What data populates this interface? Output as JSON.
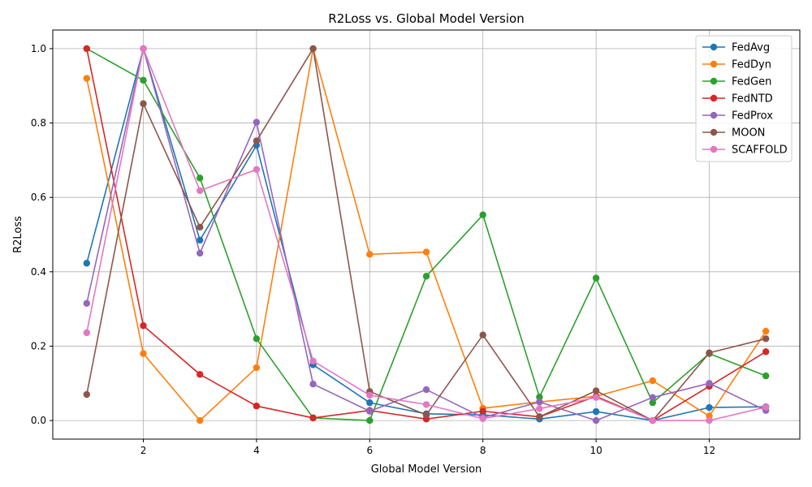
{
  "chart_data": {
    "type": "line",
    "title": "R2Loss vs. Global Model Version",
    "xlabel": "Global Model Version",
    "ylabel": "R2Loss",
    "xlim": [
      0.4,
      13.6
    ],
    "ylim": [
      -0.05,
      1.05
    ],
    "xticks": [
      2,
      4,
      6,
      8,
      10,
      12
    ],
    "yticks": [
      0.0,
      0.2,
      0.4,
      0.6,
      0.8,
      1.0
    ],
    "xtick_labels": [
      "2",
      "4",
      "6",
      "8",
      "10",
      "12"
    ],
    "ytick_labels": [
      "0.0",
      "0.2",
      "0.4",
      "0.6",
      "0.8",
      "1.0"
    ],
    "grid": true,
    "legend_position": "top-right",
    "x": [
      1,
      2,
      3,
      4,
      5,
      6,
      7,
      8,
      9,
      10,
      11,
      12,
      13
    ],
    "series": [
      {
        "name": "FedAvg",
        "color": "#1f77b4",
        "values": [
          0.423,
          1.0,
          0.485,
          0.74,
          0.15,
          0.048,
          0.018,
          0.015,
          0.004,
          0.024,
          0.0,
          0.035,
          0.037
        ]
      },
      {
        "name": "FedDyn",
        "color": "#ff7f0e",
        "values": [
          0.92,
          0.18,
          0.0,
          0.142,
          1.0,
          0.447,
          0.453,
          0.033,
          0.05,
          0.065,
          0.107,
          0.012,
          0.24
        ]
      },
      {
        "name": "FedGen",
        "color": "#2ca02c",
        "values": [
          1.0,
          0.915,
          0.652,
          0.22,
          0.007,
          0.0,
          0.388,
          0.553,
          0.063,
          0.383,
          0.048,
          0.18,
          0.12
        ]
      },
      {
        "name": "FedNTD",
        "color": "#d62728",
        "values": [
          1.0,
          0.255,
          0.124,
          0.039,
          0.007,
          0.027,
          0.004,
          0.025,
          0.01,
          0.065,
          0.0,
          0.092,
          0.185
        ]
      },
      {
        "name": "FedProx",
        "color": "#9467bd",
        "values": [
          0.315,
          1.0,
          0.45,
          0.802,
          0.098,
          0.025,
          0.083,
          0.008,
          0.05,
          0.0,
          0.062,
          0.1,
          0.027
        ]
      },
      {
        "name": "MOON",
        "color": "#8c564b",
        "values": [
          0.07,
          0.852,
          0.52,
          0.752,
          1.0,
          0.078,
          0.015,
          0.23,
          0.01,
          0.08,
          0.0,
          0.182,
          0.22
        ]
      },
      {
        "name": "SCAFFOLD",
        "color": "#e377c2",
        "values": [
          0.236,
          1.0,
          0.618,
          0.675,
          0.16,
          0.068,
          0.043,
          0.005,
          0.032,
          0.062,
          0.0,
          0.0,
          0.036
        ]
      }
    ]
  }
}
